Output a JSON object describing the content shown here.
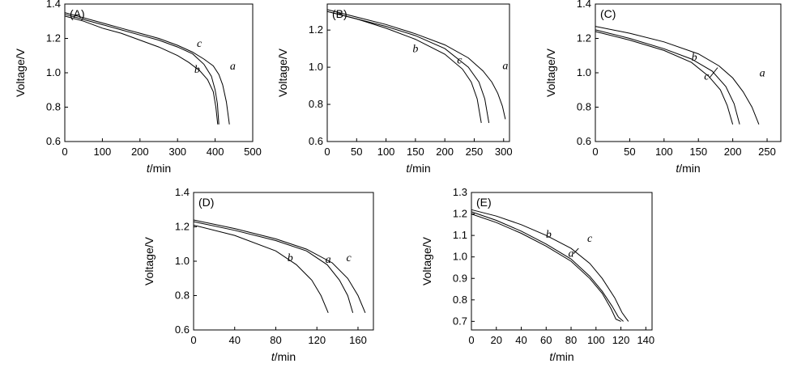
{
  "chart_data": [
    {
      "type": "line",
      "panel_label": "(A)",
      "xlabel_var": "t",
      "xlabel_unit": "/min",
      "ylabel": "Voltage/V",
      "xlim": [
        0,
        500
      ],
      "ylim": [
        0.6,
        1.4
      ],
      "xticks": [
        0,
        100,
        200,
        300,
        400,
        500
      ],
      "yticks": [
        0.6,
        0.8,
        1.0,
        1.2,
        1.4
      ],
      "series": [
        {
          "name": "a",
          "x": [
            0,
            50,
            100,
            150,
            200,
            250,
            300,
            340,
            370,
            395,
            410,
            420,
            430,
            438
          ],
          "y": [
            1.35,
            1.32,
            1.29,
            1.26,
            1.23,
            1.2,
            1.16,
            1.12,
            1.08,
            1.04,
            0.99,
            0.93,
            0.83,
            0.7
          ]
        },
        {
          "name": "b",
          "x": [
            0,
            50,
            100,
            150,
            200,
            250,
            300,
            330,
            360,
            380,
            395,
            402,
            407
          ],
          "y": [
            1.33,
            1.3,
            1.26,
            1.23,
            1.19,
            1.15,
            1.1,
            1.06,
            1.01,
            0.96,
            0.89,
            0.8,
            0.7
          ]
        },
        {
          "name": "c",
          "x": [
            0,
            50,
            100,
            150,
            200,
            250,
            300,
            340,
            370,
            390,
            400,
            406,
            410
          ],
          "y": [
            1.34,
            1.31,
            1.28,
            1.25,
            1.22,
            1.19,
            1.15,
            1.11,
            1.05,
            0.98,
            0.9,
            0.82,
            0.7
          ]
        }
      ],
      "annotations": [
        "a",
        "b",
        "c"
      ]
    },
    {
      "type": "line",
      "panel_label": "(B)",
      "xlabel_var": "t",
      "xlabel_unit": "/min",
      "ylabel": "Voltage/V",
      "xlim": [
        0,
        310
      ],
      "ylim": [
        0.6,
        1.34
      ],
      "xticks": [
        0,
        50,
        100,
        150,
        200,
        250,
        300
      ],
      "yticks": [
        0.6,
        0.8,
        1.0,
        1.2
      ],
      "series": [
        {
          "name": "a",
          "x": [
            0,
            50,
            100,
            150,
            200,
            240,
            265,
            280,
            290,
            298,
            303
          ],
          "y": [
            1.31,
            1.27,
            1.23,
            1.18,
            1.12,
            1.05,
            0.98,
            0.92,
            0.86,
            0.79,
            0.72
          ]
        },
        {
          "name": "b",
          "x": [
            0,
            50,
            100,
            150,
            200,
            230,
            245,
            255,
            262
          ],
          "y": [
            1.3,
            1.26,
            1.21,
            1.15,
            1.07,
            0.99,
            0.92,
            0.83,
            0.7
          ]
        },
        {
          "name": "c",
          "x": [
            0,
            50,
            100,
            150,
            200,
            240,
            258,
            268,
            275
          ],
          "y": [
            1.3,
            1.26,
            1.22,
            1.17,
            1.1,
            1.0,
            0.92,
            0.83,
            0.7
          ]
        }
      ],
      "annotations": [
        "a",
        "b",
        "c"
      ]
    },
    {
      "type": "line",
      "panel_label": "(C)",
      "xlabel_var": "t",
      "xlabel_unit": "/min",
      "ylabel": "Voltage/V",
      "xlim": [
        0,
        270
      ],
      "ylim": [
        0.6,
        1.4
      ],
      "xticks": [
        0,
        50,
        100,
        150,
        200,
        250
      ],
      "yticks": [
        0.6,
        0.8,
        1.0,
        1.2,
        1.4
      ],
      "series": [
        {
          "name": "a",
          "x": [
            0,
            50,
            100,
            150,
            180,
            200,
            215,
            228,
            238
          ],
          "y": [
            1.27,
            1.23,
            1.18,
            1.11,
            1.04,
            0.97,
            0.89,
            0.8,
            0.7
          ]
        },
        {
          "name": "b",
          "x": [
            0,
            50,
            100,
            140,
            165,
            182,
            192,
            200
          ],
          "y": [
            1.24,
            1.19,
            1.13,
            1.06,
            0.98,
            0.9,
            0.81,
            0.7
          ]
        },
        {
          "name": "c",
          "x": [
            0,
            50,
            100,
            140,
            170,
            190,
            202,
            210
          ],
          "y": [
            1.25,
            1.2,
            1.14,
            1.08,
            1.01,
            0.92,
            0.82,
            0.7
          ]
        }
      ],
      "annotations": [
        "a",
        "b",
        "c"
      ]
    },
    {
      "type": "line",
      "panel_label": "(D)",
      "xlabel_var": "t",
      "xlabel_unit": "/min",
      "ylabel": "Voltage/V",
      "xlim": [
        0,
        175
      ],
      "ylim": [
        0.6,
        1.4
      ],
      "xticks": [
        0,
        40,
        80,
        120,
        160
      ],
      "yticks": [
        0.6,
        0.8,
        1.0,
        1.2,
        1.4
      ],
      "series": [
        {
          "name": "a",
          "x": [
            0,
            40,
            80,
            110,
            130,
            142,
            150,
            155
          ],
          "y": [
            1.23,
            1.18,
            1.12,
            1.06,
            0.98,
            0.89,
            0.8,
            0.7
          ]
        },
        {
          "name": "b",
          "x": [
            0,
            40,
            80,
            100,
            115,
            124,
            131
          ],
          "y": [
            1.21,
            1.15,
            1.06,
            0.98,
            0.89,
            0.8,
            0.7
          ]
        },
        {
          "name": "c",
          "x": [
            0,
            40,
            80,
            110,
            135,
            150,
            160,
            167
          ],
          "y": [
            1.24,
            1.19,
            1.13,
            1.07,
            0.99,
            0.9,
            0.8,
            0.7
          ]
        }
      ],
      "annotations": [
        "a",
        "b",
        "c"
      ]
    },
    {
      "type": "line",
      "panel_label": "(E)",
      "xlabel_var": "t",
      "xlabel_unit": "/min",
      "ylabel": "Voltage/V",
      "xlim": [
        0,
        145
      ],
      "ylim": [
        0.66,
        1.3
      ],
      "xticks": [
        0,
        20,
        40,
        60,
        80,
        100,
        120,
        140
      ],
      "yticks": [
        0.7,
        0.8,
        0.9,
        1.0,
        1.1,
        1.2,
        1.3
      ],
      "series": [
        {
          "name": "a",
          "x": [
            0,
            20,
            40,
            60,
            80,
            95,
            105,
            113,
            118,
            122
          ],
          "y": [
            1.21,
            1.17,
            1.12,
            1.06,
            0.99,
            0.91,
            0.84,
            0.77,
            0.72,
            0.7
          ]
        },
        {
          "name": "b",
          "x": [
            0,
            20,
            40,
            60,
            80,
            95,
            105,
            112,
            116,
            120
          ],
          "y": [
            1.2,
            1.16,
            1.11,
            1.05,
            0.98,
            0.9,
            0.83,
            0.76,
            0.71,
            0.7
          ]
        },
        {
          "name": "c",
          "x": [
            0,
            20,
            40,
            60,
            80,
            95,
            105,
            115,
            121,
            126
          ],
          "y": [
            1.22,
            1.19,
            1.15,
            1.1,
            1.04,
            0.97,
            0.9,
            0.81,
            0.74,
            0.7
          ]
        }
      ],
      "annotations": [
        "a",
        "b",
        "c"
      ]
    }
  ]
}
